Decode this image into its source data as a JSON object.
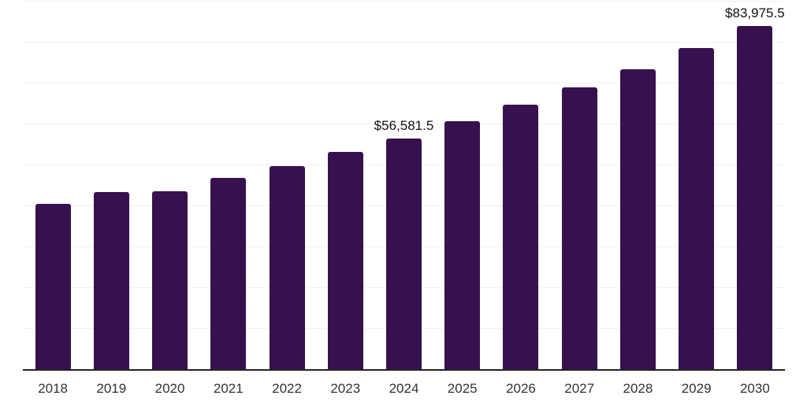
{
  "chart_data": {
    "type": "bar",
    "title": "",
    "xlabel": "",
    "ylabel": "",
    "categories": [
      "2018",
      "2019",
      "2020",
      "2021",
      "2022",
      "2023",
      "2024",
      "2025",
      "2026",
      "2027",
      "2028",
      "2029",
      "2030"
    ],
    "values": [
      40500,
      43450,
      43700,
      47000,
      49800,
      53200,
      56581.5,
      60700,
      64750,
      69050,
      73500,
      78700,
      83975.5
    ],
    "ylim": [
      0,
      90000
    ],
    "gridline_step": 10000,
    "grid": true,
    "legend": false,
    "bar_color": "#37114D",
    "gridline_color": "#f1f1f1",
    "axis_line_color": "#222222",
    "tick_label_color": "#333333",
    "data_label_color": "#111111",
    "data_labels": [
      {
        "category": "2024",
        "text": "$56,581.5"
      },
      {
        "category": "2030",
        "text": "$83,975.5"
      }
    ]
  }
}
